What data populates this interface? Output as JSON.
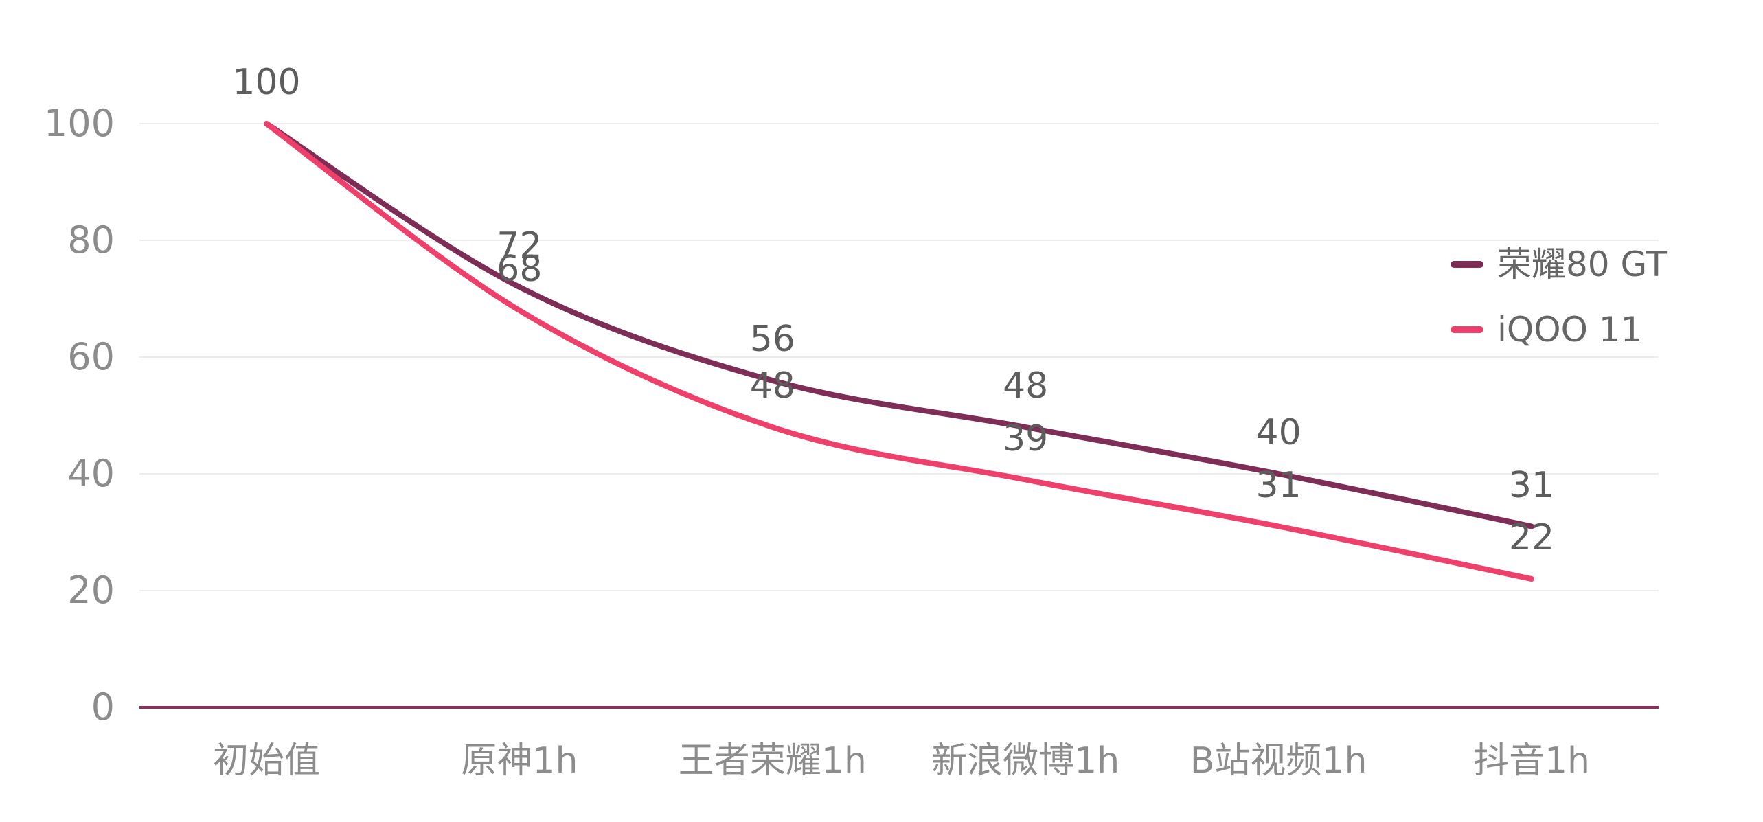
{
  "chart_data": {
    "type": "line",
    "title": "",
    "categories": [
      "初始值",
      "原神1h",
      "王者荣耀1h",
      "新浪微博1h",
      "B站视频1h",
      "抖音1h"
    ],
    "series": [
      {
        "name": "荣耀80 GT",
        "color": "#7e2d56",
        "values": [
          100,
          72,
          56,
          48,
          40,
          31
        ]
      },
      {
        "name": "iQOO 11",
        "color": "#ef3f6b",
        "values": [
          100,
          68,
          48,
          39,
          31,
          22
        ]
      }
    ],
    "y_ticks": [
      0,
      20,
      40,
      60,
      80,
      100
    ],
    "ylim": [
      0,
      100
    ],
    "grid": "horizontal-only",
    "smooth": true,
    "data_labels_shown": true,
    "legend_position": "right"
  },
  "colors": {
    "background": "#ffffff",
    "grid_line": "#ededed",
    "axis_line": "#8b2e62",
    "axis_tick_text": "#8c8c8c",
    "data_label_text": "#5d5d5d",
    "legend_text": "#666666"
  }
}
